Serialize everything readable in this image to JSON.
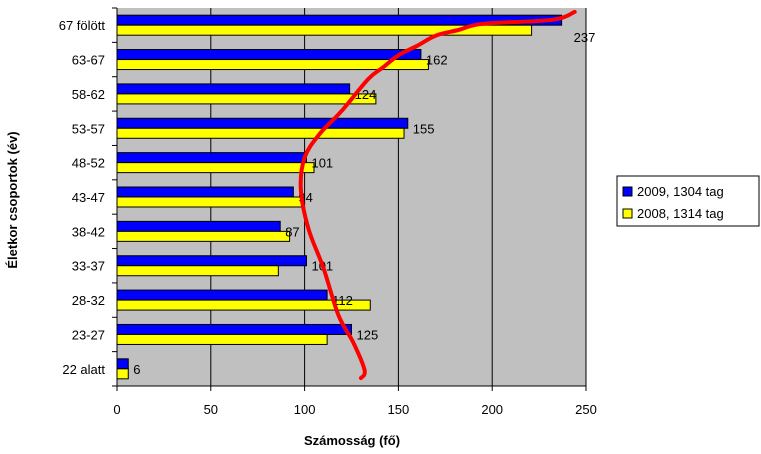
{
  "chart_data": {
    "type": "bar",
    "orientation": "horizontal",
    "categories": [
      "67 fölött",
      "63-67",
      "58-62",
      "53-57",
      "48-52",
      "43-47",
      "38-42",
      "33-37",
      "28-32",
      "23-27",
      "22 alatt"
    ],
    "series": [
      {
        "name": "2009, 1304 tag",
        "color": "#0000ff",
        "values": [
          237,
          162,
          124,
          155,
          101,
          94,
          87,
          101,
          112,
          125,
          6
        ]
      },
      {
        "name": "2008, 1314 tag",
        "color": "#ffff00",
        "values": [
          221,
          166,
          138,
          153,
          105,
          99,
          92,
          86,
          135,
          112,
          6
        ]
      }
    ],
    "data_labels": [
      "237",
      "162",
      "124",
      "155",
      "101",
      "94",
      "87",
      "101",
      "112",
      "125",
      "6"
    ],
    "xlabel": "Számosság (fő)",
    "ylabel": "Életkor csoportok (év)",
    "xlim": [
      0,
      250
    ],
    "xticks": [
      0,
      50,
      100,
      150,
      200,
      250
    ],
    "xtick_labels": [
      "0",
      "50",
      "100",
      "150",
      "200",
      "250"
    ],
    "grid": "vertical",
    "plot_background": "#c0c0c0",
    "legend_position": "right",
    "annotation_curve": {
      "color": "#ff0000",
      "points": [
        [
          244,
          67.5
        ],
        [
          232,
          66.5
        ],
        [
          195,
          66
        ],
        [
          182,
          65.2
        ],
        [
          170,
          64.5
        ],
        [
          160,
          63.2
        ],
        [
          150,
          62
        ],
        [
          142,
          60.5
        ],
        [
          134,
          59
        ],
        [
          120,
          55
        ],
        [
          108,
          52
        ],
        [
          100,
          49
        ],
        [
          98,
          45
        ],
        [
          102,
          40
        ],
        [
          110,
          35
        ],
        [
          118,
          29
        ],
        [
          126,
          25.5
        ],
        [
          132,
          22
        ],
        [
          130,
          21
        ]
      ]
    }
  }
}
